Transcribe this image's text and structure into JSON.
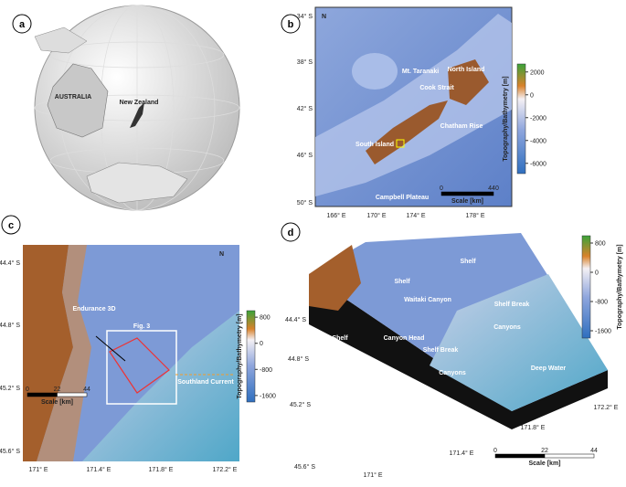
{
  "panel_a": {
    "label": "a",
    "australia": "AUSTRALIA",
    "new_zealand": "New Zealand"
  },
  "panel_b": {
    "label": "b",
    "north": "N",
    "lat_labels": [
      "34° S",
      "38° S",
      "42° S",
      "46° S",
      "50° S"
    ],
    "lon_labels": [
      "166° E",
      "170° E",
      "174° E",
      "178° E"
    ],
    "colorbar": {
      "title": "Topography/Bathymetry [m]",
      "range": [
        2700,
        -6900
      ],
      "ticks": [
        2000,
        0,
        -2000,
        -4000,
        -6000
      ]
    },
    "scale": {
      "title": "Scale [km]",
      "ticks": [
        0,
        440
      ]
    },
    "features": [
      "North Island",
      "South Island",
      "Mt. Taranaki",
      "Cook Strait",
      "Chatham Rise",
      "Campbell Plateau"
    ]
  },
  "panel_c": {
    "label": "c",
    "north": "N",
    "lat_labels": [
      "44.4° S",
      "44.8° S",
      "45.2° S",
      "45.6° S"
    ],
    "lon_labels": [
      "171° E",
      "171.4° E",
      "171.8° E",
      "172.2° E"
    ],
    "colorbar": {
      "title": "Topography/Bathymetry [m]",
      "range": [
        1000,
        -1800
      ],
      "ticks": [
        800,
        0,
        -800,
        -1600
      ]
    },
    "scale": {
      "title": "Scale [km]",
      "ticks": [
        0,
        22,
        44
      ]
    },
    "endurance": "Endurance 3D",
    "fig3": "Fig. 3",
    "current": "Southland Current"
  },
  "panel_d": {
    "label": "d",
    "lat_labels": [
      "44.4° S",
      "44.8° S",
      "45.2° S",
      "45.6° S"
    ],
    "lon_labels": [
      "171° E",
      "171.4° E",
      "171.8° E",
      "172.2° E"
    ],
    "colorbar": {
      "title": "Topography/Bathymetry [m]",
      "range": [
        1000,
        -1800
      ],
      "ticks": [
        800,
        0,
        -800,
        -1600
      ]
    },
    "scale": {
      "title": "Scale [km]",
      "ticks": [
        0,
        22,
        44
      ]
    },
    "features": [
      "Shelf",
      "Shelf",
      "Shelf",
      "Waitaki Canyon",
      "Canyon Head",
      "Shelf Break",
      "Shelf Break",
      "Canyons",
      "Canyons",
      "Deep Water"
    ]
  }
}
